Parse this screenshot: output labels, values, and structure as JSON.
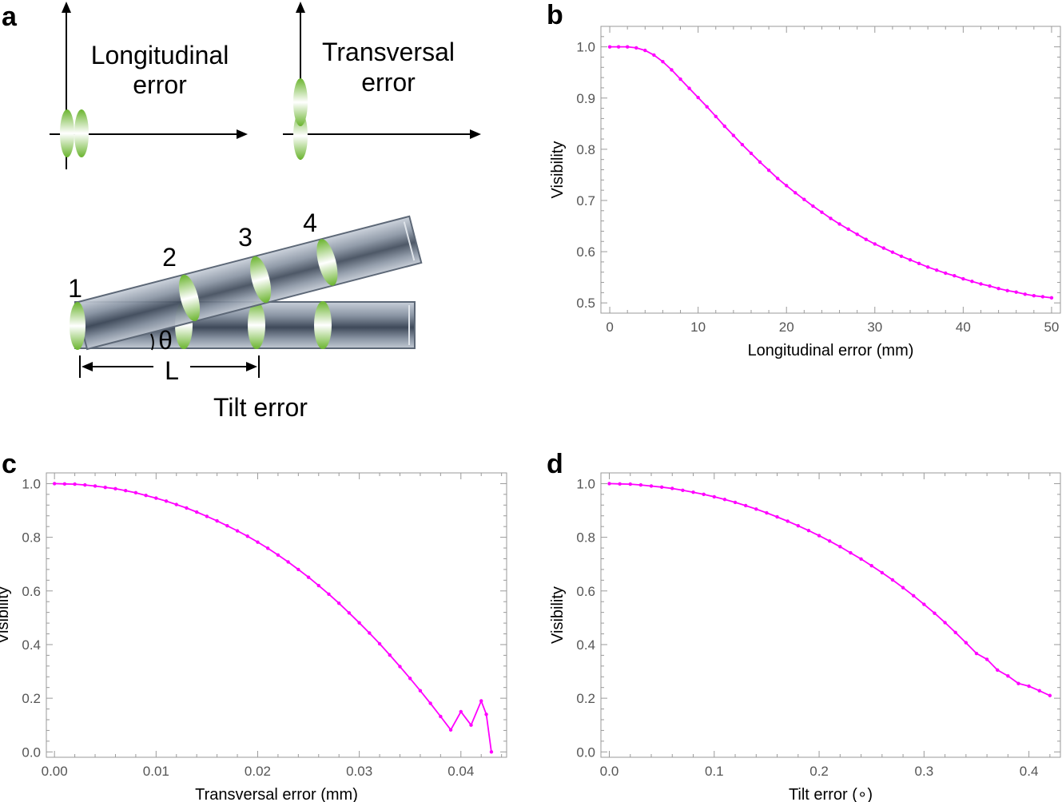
{
  "panels": {
    "a": "a",
    "b": "b",
    "c": "c",
    "d": "d"
  },
  "diagram": {
    "longitudinal_label_line1": "Longitudinal",
    "longitudinal_label_line2": "error",
    "transversal_label_line1": "Transversal",
    "transversal_label_line2": "error",
    "tilt_title": "Tilt error",
    "lens_numbers": [
      "1",
      "2",
      "3",
      "4"
    ],
    "angle_symbol": "θ",
    "length_symbol": "L"
  },
  "colors": {
    "series": "#ff00ff",
    "lens_green": "#7cc242",
    "tube_fill": "#7d8796",
    "tube_edge": "#6f7a88"
  },
  "chart_data": [
    {
      "id": "b",
      "type": "line",
      "title": "",
      "xlabel": "Longitudinal error (mm)",
      "ylabel": "Visibility",
      "xlim": [
        -1,
        51
      ],
      "ylim": [
        0.48,
        1.04
      ],
      "xticks": [
        0,
        10,
        20,
        30,
        40,
        50
      ],
      "yticks": [
        0.5,
        0.6,
        0.7,
        0.8,
        0.9,
        1.0
      ],
      "xtick_labels": [
        "0",
        "10",
        "20",
        "30",
        "40",
        "50"
      ],
      "ytick_labels": [
        "0.5",
        "0.6",
        "0.7",
        "0.8",
        "0.9",
        "1.0"
      ],
      "series": [
        {
          "name": "Visibility",
          "x": [
            0,
            1,
            2,
            3,
            4,
            5,
            6,
            7,
            8,
            9,
            10,
            11,
            12,
            13,
            14,
            15,
            16,
            17,
            18,
            19,
            20,
            21,
            22,
            23,
            24,
            25,
            26,
            27,
            28,
            29,
            30,
            31,
            32,
            33,
            34,
            35,
            36,
            37,
            38,
            39,
            40,
            41,
            42,
            43,
            44,
            45,
            46,
            47,
            48,
            49,
            50
          ],
          "values": [
            1.0,
            1.0,
            1.0,
            0.998,
            0.993,
            0.984,
            0.971,
            0.955,
            0.937,
            0.919,
            0.901,
            0.883,
            0.864,
            0.845,
            0.827,
            0.809,
            0.792,
            0.775,
            0.759,
            0.743,
            0.729,
            0.715,
            0.702,
            0.689,
            0.677,
            0.665,
            0.654,
            0.644,
            0.634,
            0.624,
            0.615,
            0.607,
            0.599,
            0.591,
            0.584,
            0.577,
            0.57,
            0.564,
            0.558,
            0.553,
            0.547,
            0.542,
            0.537,
            0.533,
            0.528,
            0.524,
            0.521,
            0.517,
            0.514,
            0.512,
            0.51
          ]
        }
      ]
    },
    {
      "id": "c",
      "type": "line",
      "title": "",
      "xlabel": "Transversal error (mm)",
      "ylabel": "Visibility",
      "xlim": [
        -0.0008,
        0.0445
      ],
      "ylim": [
        -0.02,
        1.04
      ],
      "xticks": [
        0,
        0.01,
        0.02,
        0.03,
        0.04
      ],
      "yticks": [
        0,
        0.2,
        0.4,
        0.6,
        0.8,
        1.0
      ],
      "xtick_labels": [
        "0.00",
        "0.01",
        "0.02",
        "0.03",
        "0.04"
      ],
      "ytick_labels": [
        "0.0",
        "0.2",
        "0.4",
        "0.6",
        "0.8",
        "1.0"
      ],
      "series": [
        {
          "name": "Visibility",
          "x": [
            0,
            0.001,
            0.002,
            0.003,
            0.004,
            0.005,
            0.006,
            0.007,
            0.008,
            0.009,
            0.01,
            0.011,
            0.012,
            0.013,
            0.014,
            0.015,
            0.016,
            0.017,
            0.018,
            0.019,
            0.02,
            0.021,
            0.022,
            0.023,
            0.024,
            0.025,
            0.026,
            0.027,
            0.028,
            0.029,
            0.03,
            0.031,
            0.032,
            0.033,
            0.034,
            0.035,
            0.036,
            0.037,
            0.038,
            0.039,
            0.04,
            0.041,
            0.042,
            0.0425,
            0.043
          ],
          "values": [
            1.0,
            0.999,
            0.998,
            0.995,
            0.991,
            0.986,
            0.981,
            0.974,
            0.966,
            0.956,
            0.946,
            0.935,
            0.922,
            0.909,
            0.894,
            0.878,
            0.861,
            0.843,
            0.824,
            0.804,
            0.782,
            0.759,
            0.734,
            0.708,
            0.68,
            0.651,
            0.62,
            0.588,
            0.554,
            0.518,
            0.481,
            0.443,
            0.403,
            0.361,
            0.318,
            0.274,
            0.228,
            0.181,
            0.132,
            0.082,
            0.15,
            0.1,
            0.19,
            0.14,
            0.0
          ]
        }
      ]
    },
    {
      "id": "d",
      "type": "line",
      "title": "",
      "xlabel": "Tilt error (∘)",
      "ylabel": "Visibility",
      "xlim": [
        -0.008,
        0.43
      ],
      "ylim": [
        -0.02,
        1.04
      ],
      "xticks": [
        0,
        0.1,
        0.2,
        0.3,
        0.4
      ],
      "yticks": [
        0,
        0.2,
        0.4,
        0.6,
        0.8,
        1.0
      ],
      "xtick_labels": [
        "0.0",
        "0.1",
        "0.2",
        "0.3",
        "0.4"
      ],
      "ytick_labels": [
        "0.0",
        "0.2",
        "0.4",
        "0.6",
        "0.8",
        "1.0"
      ],
      "series": [
        {
          "name": "Visibility",
          "x": [
            0,
            0.01,
            0.02,
            0.03,
            0.04,
            0.05,
            0.06,
            0.07,
            0.08,
            0.09,
            0.1,
            0.11,
            0.12,
            0.13,
            0.14,
            0.15,
            0.16,
            0.17,
            0.18,
            0.19,
            0.2,
            0.21,
            0.22,
            0.23,
            0.24,
            0.25,
            0.26,
            0.27,
            0.28,
            0.29,
            0.3,
            0.31,
            0.32,
            0.33,
            0.34,
            0.35,
            0.36,
            0.37,
            0.38,
            0.39,
            0.4,
            0.41,
            0.42
          ],
          "values": [
            1.0,
            0.999,
            0.998,
            0.995,
            0.991,
            0.987,
            0.982,
            0.975,
            0.968,
            0.96,
            0.951,
            0.941,
            0.93,
            0.918,
            0.905,
            0.891,
            0.876,
            0.86,
            0.843,
            0.825,
            0.806,
            0.786,
            0.765,
            0.742,
            0.719,
            0.694,
            0.668,
            0.641,
            0.612,
            0.582,
            0.55,
            0.517,
            0.482,
            0.445,
            0.407,
            0.367,
            0.345,
            0.305,
            0.283,
            0.255,
            0.245,
            0.228,
            0.21
          ]
        }
      ]
    }
  ]
}
